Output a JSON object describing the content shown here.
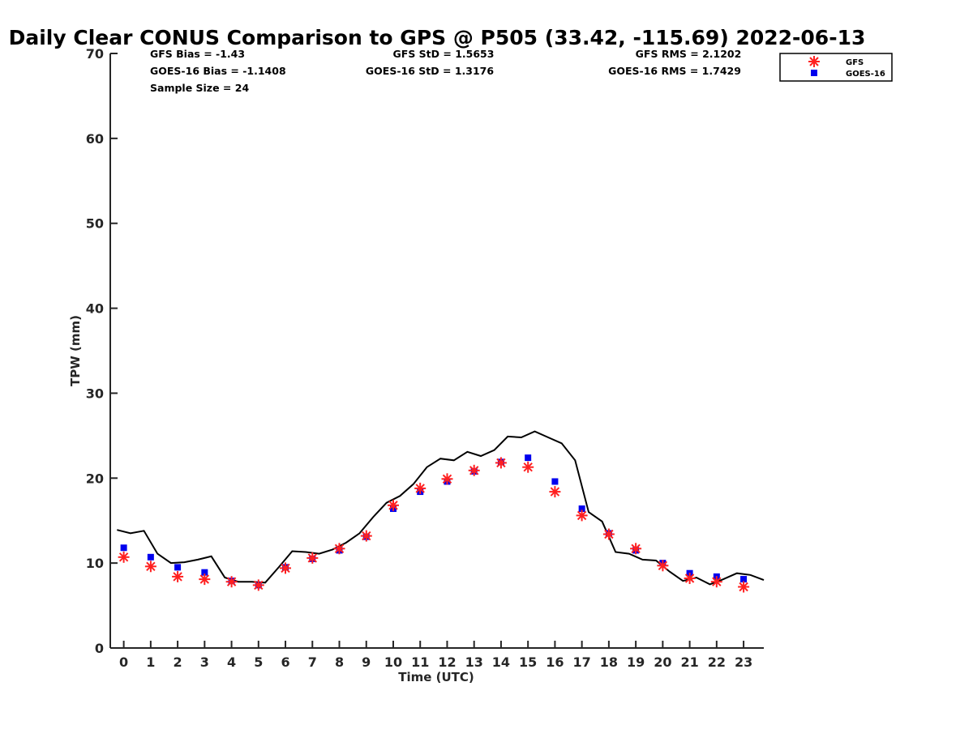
{
  "chart_data": {
    "type": "scatter",
    "title": "Daily Clear CONUS Comparison to GPS @ P505 (33.42, -115.69) 2022-06-13",
    "xlabel": "Time (UTC)",
    "ylabel": "TPW (mm)",
    "xlim": [
      -0.5,
      23.75
    ],
    "ylim": [
      0,
      70
    ],
    "x_ticks": [
      "0",
      "1",
      "2",
      "3",
      "4",
      "5",
      "6",
      "7",
      "8",
      "9",
      "10",
      "11",
      "12",
      "13",
      "14",
      "15",
      "16",
      "17",
      "18",
      "19",
      "20",
      "21",
      "22",
      "23"
    ],
    "y_ticks": [
      "0",
      "10",
      "20",
      "30",
      "40",
      "50",
      "60",
      "70"
    ],
    "grid": false,
    "legend_placement": "top-right",
    "stats": {
      "gfs_bias": "GFS Bias = -1.43",
      "goes_bias": "GOES-16 Bias = -1.1408",
      "sample_size": "Sample Size = 24",
      "gfs_std": "GFS StD = 1.5653",
      "goes_std": "GOES-16 StD = 1.3176",
      "gfs_rms": "GFS RMS = 2.1202",
      "goes_rms": "GOES-16 RMS = 1.7429"
    },
    "series": [
      {
        "name": "GFS",
        "marker": "asterisk",
        "color": "#ff2020",
        "x": [
          0,
          1,
          2,
          3,
          4,
          5,
          6,
          7,
          8,
          9,
          10,
          11,
          12,
          13,
          14,
          15,
          16,
          17,
          18,
          19,
          20,
          21,
          22,
          23
        ],
        "values": [
          10.7,
          9.6,
          8.4,
          8.1,
          7.8,
          7.4,
          9.4,
          10.6,
          11.7,
          13.2,
          16.8,
          18.8,
          19.9,
          20.9,
          21.8,
          21.3,
          18.4,
          15.6,
          13.4,
          11.7,
          9.7,
          8.2,
          7.8,
          7.2
        ]
      },
      {
        "name": "GOES-16",
        "marker": "square",
        "color": "#0000ee",
        "x": [
          0,
          1,
          2,
          3,
          4,
          5,
          6,
          7,
          8,
          9,
          10,
          11,
          12,
          13,
          14,
          15,
          16,
          17,
          18,
          19,
          20,
          21,
          22,
          23
        ],
        "values": [
          11.8,
          10.7,
          9.5,
          8.9,
          7.9,
          7.4,
          9.5,
          10.5,
          11.5,
          13.1,
          16.4,
          18.4,
          19.6,
          20.8,
          21.9,
          22.4,
          19.6,
          16.4,
          13.5,
          11.5,
          10.0,
          8.8,
          8.4,
          8.1
        ]
      },
      {
        "marker": "line",
        "color": "#000000",
        "x": [
          -0.25,
          0.25,
          0.75,
          1.25,
          1.75,
          2.25,
          2.75,
          3.25,
          3.75,
          4.25,
          4.75,
          5.25,
          5.75,
          6.25,
          6.75,
          7.25,
          7.75,
          8.25,
          8.75,
          9.25,
          9.75,
          10.25,
          10.75,
          11.25,
          11.75,
          12.25,
          12.75,
          13.25,
          13.75,
          14.25,
          14.75,
          15.25,
          15.75,
          16.25,
          16.75,
          17.25,
          17.75,
          18.25,
          18.75,
          19.25,
          19.75,
          20.25,
          20.75,
          21.25,
          21.75,
          22.25,
          22.75,
          23.25,
          23.75
        ],
        "values": [
          13.9,
          13.5,
          13.8,
          11.1,
          10.0,
          10.1,
          10.4,
          10.8,
          8.3,
          7.8,
          7.8,
          7.7,
          9.5,
          11.4,
          11.3,
          11.1,
          11.6,
          12.4,
          13.5,
          15.4,
          17.1,
          17.9,
          19.3,
          21.3,
          22.3,
          22.1,
          23.1,
          22.6,
          23.3,
          24.9,
          24.8,
          25.5,
          24.8,
          24.1,
          22.1,
          16.0,
          14.9,
          11.3,
          11.1,
          10.4,
          10.3,
          9.0,
          7.9,
          8.3,
          7.5,
          8.1,
          8.8,
          8.6,
          8.0
        ]
      }
    ]
  }
}
